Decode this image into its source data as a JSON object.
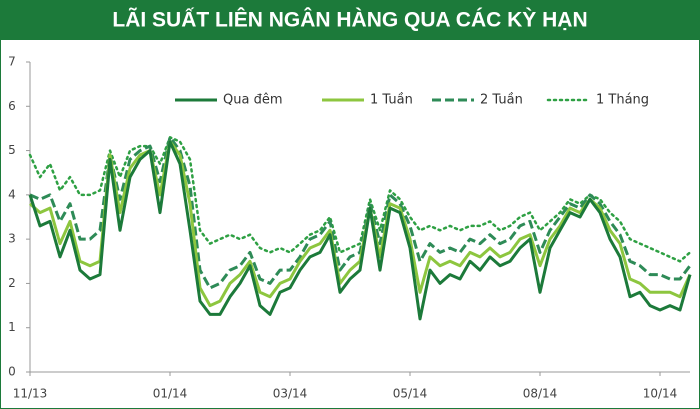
{
  "chart_data": {
    "type": "line",
    "title": "LÃI SUẤT LIÊN NGÂN HÀNG QUA CÁC KỲ HẠN",
    "categories": [
      "11/13",
      null,
      null,
      null,
      null,
      null,
      null,
      null,
      null,
      null,
      null,
      null,
      null,
      null,
      "01/14",
      null,
      null,
      null,
      null,
      null,
      null,
      null,
      null,
      null,
      null,
      null,
      "03/14",
      null,
      null,
      null,
      null,
      null,
      null,
      null,
      null,
      null,
      null,
      null,
      "05/14",
      null,
      null,
      null,
      null,
      null,
      null,
      null,
      null,
      null,
      null,
      null,
      null,
      "08/14",
      null,
      null,
      null,
      null,
      null,
      null,
      null,
      null,
      null,
      null,
      null,
      "10/14",
      null,
      null,
      null
    ],
    "series": [
      {
        "name": "Qua đêm",
        "color": "#1c7a3a",
        "style": "solid",
        "width": 3,
        "values": [
          4.0,
          3.3,
          3.4,
          2.6,
          3.2,
          2.3,
          2.1,
          2.2,
          4.8,
          3.2,
          4.4,
          4.8,
          5.0,
          3.6,
          5.2,
          4.7,
          3.2,
          1.6,
          1.3,
          1.3,
          1.7,
          2.0,
          2.4,
          1.5,
          1.3,
          1.8,
          1.9,
          2.3,
          2.6,
          2.7,
          3.1,
          1.8,
          2.1,
          2.3,
          3.7,
          2.3,
          3.7,
          3.6,
          2.8,
          1.2,
          2.3,
          2.0,
          2.2,
          2.1,
          2.5,
          2.3,
          2.6,
          2.4,
          2.5,
          2.8,
          3.0,
          1.8,
          2.8,
          3.2,
          3.6,
          3.5,
          3.9,
          3.6,
          3.0,
          2.6,
          1.7,
          1.8,
          1.5,
          1.4,
          1.5,
          1.4,
          2.2
        ]
      },
      {
        "name": "1 Tuần",
        "color": "#8dc63f",
        "style": "solid",
        "width": 3,
        "values": [
          3.8,
          3.6,
          3.7,
          2.9,
          3.4,
          2.5,
          2.4,
          2.5,
          4.9,
          3.6,
          4.6,
          4.9,
          5.0,
          4.0,
          5.2,
          4.9,
          3.8,
          1.9,
          1.5,
          1.6,
          2.0,
          2.2,
          2.5,
          1.8,
          1.7,
          2.0,
          2.1,
          2.5,
          2.8,
          2.9,
          3.2,
          2.0,
          2.3,
          2.5,
          3.7,
          2.6,
          3.8,
          3.7,
          3.0,
          1.8,
          2.6,
          2.4,
          2.5,
          2.4,
          2.7,
          2.6,
          2.8,
          2.6,
          2.7,
          3.0,
          3.1,
          2.4,
          3.0,
          3.3,
          3.7,
          3.6,
          3.9,
          3.7,
          3.2,
          2.9,
          2.1,
          2.0,
          1.8,
          1.8,
          1.8,
          1.7,
          2.2
        ]
      },
      {
        "name": "2 Tuần",
        "color": "#2e8b57",
        "style": "dashed",
        "width": 3,
        "values": [
          4.0,
          3.9,
          4.0,
          3.4,
          3.8,
          3.0,
          3.0,
          3.2,
          4.9,
          3.9,
          4.8,
          5.0,
          5.1,
          4.3,
          5.3,
          5.0,
          4.2,
          2.3,
          1.9,
          2.0,
          2.3,
          2.4,
          2.7,
          2.1,
          2.0,
          2.3,
          2.3,
          2.6,
          3.0,
          3.1,
          3.4,
          2.3,
          2.6,
          2.7,
          3.8,
          2.9,
          4.0,
          3.8,
          3.3,
          2.5,
          2.9,
          2.7,
          2.8,
          2.7,
          3.0,
          2.9,
          3.1,
          2.9,
          3.0,
          3.3,
          3.4,
          2.7,
          3.2,
          3.5,
          3.8,
          3.7,
          4.0,
          3.8,
          3.4,
          3.1,
          2.5,
          2.4,
          2.2,
          2.2,
          2.1,
          2.1,
          2.4
        ]
      },
      {
        "name": "1 Tháng",
        "color": "#2ea043",
        "style": "dotted",
        "width": 2.5,
        "values": [
          4.9,
          4.4,
          4.7,
          4.1,
          4.4,
          4.0,
          4.0,
          4.1,
          5.0,
          4.4,
          5.0,
          5.1,
          5.1,
          4.7,
          5.3,
          5.2,
          4.8,
          3.2,
          2.9,
          3.0,
          3.1,
          3.0,
          3.1,
          2.8,
          2.7,
          2.8,
          2.7,
          2.9,
          3.1,
          3.2,
          3.5,
          2.7,
          2.8,
          2.9,
          3.9,
          3.2,
          4.1,
          3.9,
          3.5,
          3.2,
          3.3,
          3.2,
          3.3,
          3.2,
          3.3,
          3.3,
          3.4,
          3.2,
          3.3,
          3.5,
          3.6,
          3.2,
          3.4,
          3.6,
          3.9,
          3.8,
          4.0,
          3.9,
          3.6,
          3.4,
          3.0,
          2.9,
          2.8,
          2.7,
          2.6,
          2.5,
          2.7
        ]
      }
    ],
    "ylim": [
      0,
      7
    ],
    "yticks": [
      0,
      1,
      2,
      3,
      4,
      5,
      6,
      7
    ],
    "grid": false,
    "legend": "top"
  }
}
